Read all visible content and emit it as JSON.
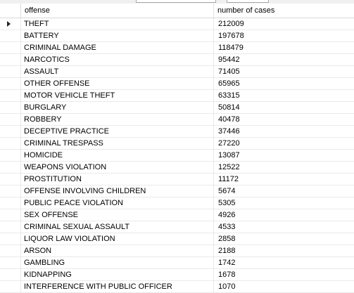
{
  "columns": {
    "offense": "offense",
    "cases": "number of cases"
  },
  "rows": [
    {
      "offense": "THEFT",
      "cases": "212009"
    },
    {
      "offense": "BATTERY",
      "cases": "197678"
    },
    {
      "offense": "CRIMINAL DAMAGE",
      "cases": "118479"
    },
    {
      "offense": "NARCOTICS",
      "cases": "95442"
    },
    {
      "offense": "ASSAULT",
      "cases": "71405"
    },
    {
      "offense": "OTHER OFFENSE",
      "cases": "65965"
    },
    {
      "offense": "MOTOR VEHICLE THEFT",
      "cases": "63315"
    },
    {
      "offense": "BURGLARY",
      "cases": "50814"
    },
    {
      "offense": "ROBBERY",
      "cases": "40478"
    },
    {
      "offense": "DECEPTIVE PRACTICE",
      "cases": "37446"
    },
    {
      "offense": "CRIMINAL TRESPASS",
      "cases": "27220"
    },
    {
      "offense": "HOMICIDE",
      "cases": "13087"
    },
    {
      "offense": "WEAPONS VIOLATION",
      "cases": "12522"
    },
    {
      "offense": "PROSTITUTION",
      "cases": "11172"
    },
    {
      "offense": "OFFENSE INVOLVING CHILDREN",
      "cases": "5674"
    },
    {
      "offense": "PUBLIC PEACE VIOLATION",
      "cases": "5305"
    },
    {
      "offense": "SEX OFFENSE",
      "cases": "4926"
    },
    {
      "offense": "CRIMINAL SEXUAL ASSAULT",
      "cases": "4533"
    },
    {
      "offense": "LIQUOR LAW VIOLATION",
      "cases": "2858"
    },
    {
      "offense": "ARSON",
      "cases": "2188"
    },
    {
      "offense": "GAMBLING",
      "cases": "1742"
    },
    {
      "offense": "KIDNAPPING",
      "cases": "1678"
    },
    {
      "offense": "INTERFERENCE WITH PUBLIC OFFICER",
      "cases": "1070"
    }
  ],
  "current_row_indicator": "row-pointer-icon"
}
